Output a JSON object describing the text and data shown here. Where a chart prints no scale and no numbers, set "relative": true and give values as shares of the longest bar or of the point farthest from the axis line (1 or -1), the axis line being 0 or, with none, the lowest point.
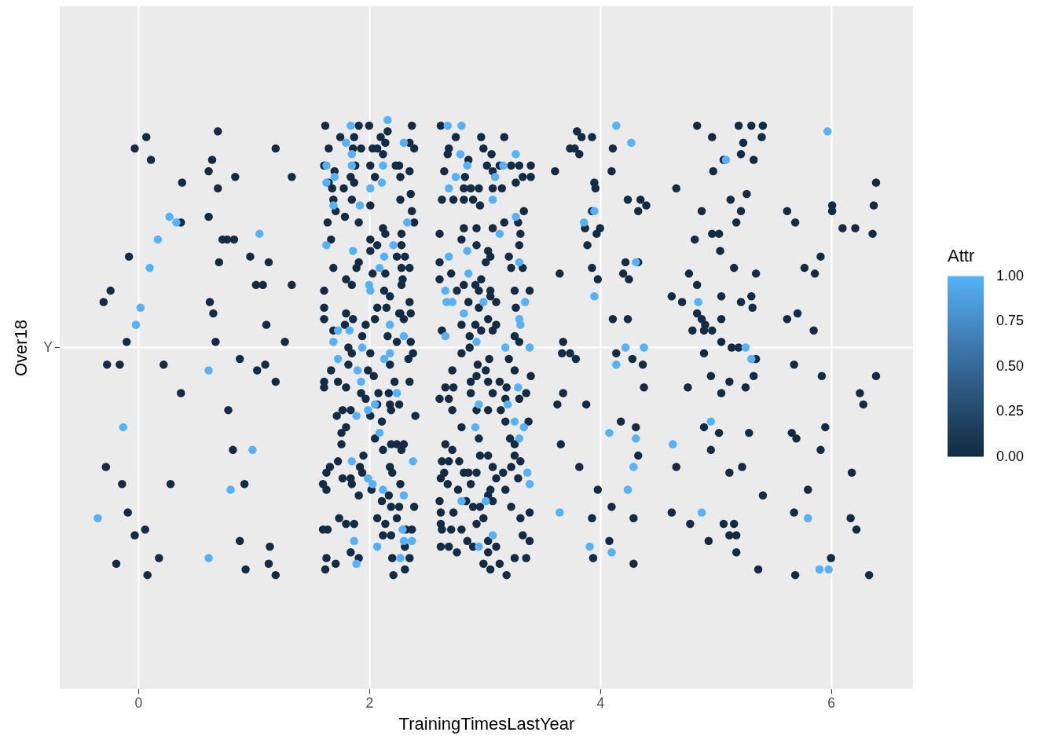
{
  "chart_data": {
    "type": "scatter",
    "xlabel": "TrainingTimesLastYear",
    "ylabel": "Over18",
    "clabel": "Attr",
    "xlim": [
      -0.68,
      6.71
    ],
    "xticks": [
      0,
      2,
      4,
      6
    ],
    "relative": true,
    "ref_lines": [
      {
        "axis": "y",
        "value": 0.6,
        "color": "#ffffff"
      }
    ],
    "annotations": [
      "Y"
    ],
    "clim": [
      0,
      1
    ],
    "cticks": [
      {
        "value": 0,
        "label": "0.00"
      },
      {
        "value": 0.25,
        "label": "0.25"
      },
      {
        "value": 0.5,
        "label": "0.50"
      },
      {
        "value": 0.75,
        "label": "0.75"
      },
      {
        "value": 1,
        "label": "1.00"
      }
    ],
    "grid": "x",
    "marker": "circle",
    "series": [
      {
        "x": [
          0.07,
          0.69,
          -0.03,
          0.11,
          1.19,
          0.64,
          0.61,
          0.84,
          1.33,
          0.38,
          0.69,
          0.37,
          0.61,
          0.73,
          0.77,
          0.83,
          -0.08,
          0.7,
          0.97,
          1.13,
          1.02,
          1.08,
          1.33,
          -0.24,
          -0.3,
          0.62,
          0.65,
          1.11,
          -0.1,
          0.67,
          1.27,
          -0.27,
          -0.16,
          0.22,
          0.88,
          1.03,
          1.1,
          1.19,
          0.37,
          0.78,
          0.82,
          -0.28,
          -0.14,
          0.28,
          0.92,
          -0.09,
          0.06,
          -0.03,
          0.88,
          1.14,
          0.18,
          -0.19,
          0.08,
          0.93,
          1.13,
          1.19,
          4.84,
          3.8,
          3.84,
          3.93,
          5.2,
          5.31,
          5.41,
          5.4,
          4.97,
          5.24,
          3.74,
          3.78,
          3.82,
          4.11,
          5.07,
          5.22,
          5.33,
          3.61,
          4.1,
          4.98,
          3.95,
          3.96,
          6.39,
          4.66,
          5.27,
          4.24,
          4.35,
          4.4,
          4.33,
          5.13,
          4.88,
          5.22,
          6.01,
          6.01,
          6.37,
          5.62,
          5.69,
          3.93,
          3.87,
          4.0,
          3.97,
          5.18,
          6.1,
          6.21,
          6.36,
          5.03,
          4.97,
          4.82,
          3.89,
          5.04,
          4.33,
          4.22,
          5.91,
          3.65,
          3.93,
          3.98,
          4.2,
          4.25,
          4.77,
          5.16,
          5.35,
          5.77,
          5.86,
          4.84,
          4.62,
          4.71,
          5.05,
          5.31,
          5.22,
          5.32,
          4.11,
          4.24,
          4.84,
          4.88,
          4.91,
          4.9,
          4.97,
          4.8,
          5.05,
          5.62,
          5.71,
          5.85,
          3.68,
          3.67,
          3.74,
          3.79,
          4.14,
          4.28,
          5.05,
          5.14,
          5.2,
          5.35,
          4.9,
          4.37,
          5.68,
          5.92,
          6.39,
          4.96,
          5.33,
          4.76,
          5.12,
          5.26,
          5.05,
          4.38,
          3.68,
          3.63,
          3.88,
          6.25,
          6.28,
          4.18,
          4.31,
          4.9,
          5.03,
          5.29,
          5.66,
          5.7,
          5.95,
          3.66,
          4.96,
          4.33,
          5.91,
          3.82,
          4.66,
          5.23,
          5.12,
          6.18,
          3.98,
          5.8,
          5.41,
          4.1,
          3.93,
          4.29,
          4.62,
          4.78,
          5.07,
          5.16,
          5.12,
          5.18,
          5.68,
          6.17,
          6.22,
          3.94,
          4.08,
          4.29,
          4.94,
          5.18,
          5.37,
          5.69,
          6.0,
          6.33,
          1.62,
          1.91,
          2.0,
          2.37,
          1.75,
          1.87,
          2.16,
          2.1,
          2.14,
          2.35,
          2.39,
          1.65,
          1.86,
          1.93,
          2.03,
          2.07,
          2.12,
          1.61,
          1.7,
          1.88,
          2.01,
          2.26,
          2.23,
          2.35,
          2.27,
          2.05,
          1.84,
          1.65,
          1.68,
          1.78,
          1.87,
          1.69,
          1.85,
          2.01,
          2.27,
          2.36,
          1.71,
          1.79,
          2.37,
          1.64,
          1.91,
          2.12,
          2.28,
          2.39,
          1.67,
          2.01,
          2.14,
          2.28,
          2.07,
          2.01,
          2.31,
          1.69,
          1.91,
          1.89,
          2.24,
          2.28,
          2.35,
          1.8,
          1.85,
          2.03,
          2.14,
          2.29,
          2.28,
          1.61,
          2.13,
          2.18,
          1.61,
          2.07,
          2.15,
          2.35,
          2.27,
          2.36,
          1.61,
          1.8,
          1.86,
          2.05,
          1.97,
          2.26,
          2.3,
          1.69,
          1.79,
          1.94,
          2.16,
          2.36,
          2.24,
          1.82,
          2.01,
          1.85,
          1.82,
          1.67,
          1.61,
          1.61,
          1.73,
          1.8,
          1.99,
          2.04,
          2.18,
          2.34,
          2.38,
          1.93,
          1.97,
          2.08,
          2.07,
          2.22,
          2.35,
          2.17,
          2.18,
          2.26,
          2.19,
          2.4,
          1.72,
          1.77,
          1.84,
          2.01,
          2.11,
          1.8,
          1.76,
          1.76,
          2.05,
          2.12,
          2.19,
          2.24,
          2.3,
          2.28,
          1.73,
          1.66,
          1.63,
          1.77,
          1.84,
          1.92,
          1.95,
          1.94,
          1.85,
          2.02,
          1.91,
          1.6,
          1.63,
          2.18,
          2.2,
          2.27,
          2.17,
          2.11,
          2.19,
          2.26,
          2.24,
          2.39,
          1.74,
          1.8,
          1.87,
          1.6,
          1.64,
          2.07,
          2.14,
          2.12,
          2.19,
          2.32,
          2.37,
          2.31,
          1.63,
          1.62,
          1.71,
          1.84,
          1.91,
          2.2,
          2.35,
          2.21,
          2.31,
          2.62,
          2.75,
          2.97,
          3.17,
          2.69,
          2.68,
          2.86,
          2.99,
          3.06,
          2.65,
          3.02,
          3.13,
          3.23,
          3.3,
          3.4,
          3.4,
          3.33,
          3.07,
          2.83,
          2.82,
          2.88,
          2.95,
          3.07,
          3.15,
          3.27,
          2.63,
          2.73,
          2.82,
          2.9,
          2.96,
          3.34,
          2.61,
          2.82,
          2.93,
          3.07,
          3.17,
          3.29,
          3.31,
          3.3,
          2.8,
          2.93,
          3.03,
          3.05,
          3.21,
          2.61,
          3.01,
          3.23,
          3.33,
          2.61,
          2.71,
          2.82,
          2.92,
          2.97,
          2.95,
          3.05,
          3.26,
          3.39,
          2.76,
          2.86,
          2.95,
          3.05,
          3.1,
          3.27,
          2.8,
          2.92,
          3.03,
          3.1,
          2.63,
          2.87,
          2.97,
          3.07,
          3.26,
          3.3,
          2.8,
          2.87,
          2.72,
          2.94,
          3.04,
          3.01,
          2.93,
          2.88,
          2.88,
          3.03,
          3.21,
          3.26,
          3.4,
          3.13,
          3.19,
          3.36,
          3.07,
          3.18,
          3.3,
          2.66,
          2.73,
          2.69,
          2.61,
          2.72,
          2.93,
          3.03,
          3.14,
          3.18,
          3.38,
          2.8,
          2.95,
          3.22,
          3.26,
          2.66,
          2.72,
          2.63,
          2.69,
          2.78,
          2.96,
          3.03,
          3.07,
          3.26,
          3.31,
          3.23,
          3.29,
          3.16,
          2.65,
          2.62,
          2.68,
          2.82,
          2.86,
          2.93,
          2.88,
          2.77,
          3.1,
          3.05,
          3.18,
          3.03,
          2.84,
          2.9,
          2.96,
          3.07,
          3.23,
          3.39,
          2.61,
          2.62,
          2.73,
          2.62,
          2.63,
          2.71,
          2.8,
          2.85,
          2.93,
          2.99,
          3.03,
          3.1,
          3.31,
          3.33,
          3.39,
          2.62,
          2.69,
          2.76,
          2.9,
          3.03,
          2.99,
          3.05,
          3.13,
          3.26,
          3.36,
          3.19
        ],
        "values": [
          0.97,
          0.98,
          0.95,
          0.93,
          0.95,
          0.93,
          0.91,
          0.9,
          0.9,
          0.89,
          0.88,
          0.82,
          0.83,
          0.79,
          0.79,
          0.79,
          0.76,
          0.75,
          0.76,
          0.75,
          0.71,
          0.71,
          0.71,
          0.7,
          0.68,
          0.68,
          0.66,
          0.64,
          0.61,
          0.61,
          0.61,
          0.57,
          0.57,
          0.57,
          0.58,
          0.56,
          0.57,
          0.54,
          0.52,
          0.49,
          0.42,
          0.39,
          0.36,
          0.36,
          0.36,
          0.31,
          0.28,
          0.27,
          0.26,
          0.25,
          0.23,
          0.22,
          0.2,
          0.21,
          0.22,
          0.2,
          0.99,
          0.98,
          0.97,
          0.97,
          0.99,
          0.99,
          0.99,
          0.97,
          0.97,
          0.96,
          0.95,
          0.95,
          0.94,
          0.95,
          0.93,
          0.94,
          0.93,
          0.91,
          0.91,
          0.91,
          0.89,
          0.88,
          0.89,
          0.88,
          0.87,
          0.86,
          0.86,
          0.85,
          0.84,
          0.86,
          0.84,
          0.84,
          0.85,
          0.84,
          0.85,
          0.84,
          0.82,
          0.84,
          0.81,
          0.81,
          0.8,
          0.82,
          0.81,
          0.81,
          0.8,
          0.8,
          0.8,
          0.79,
          0.78,
          0.77,
          0.75,
          0.75,
          0.76,
          0.73,
          0.74,
          0.72,
          0.73,
          0.72,
          0.73,
          0.74,
          0.73,
          0.74,
          0.73,
          0.71,
          0.69,
          0.68,
          0.69,
          0.69,
          0.68,
          0.67,
          0.65,
          0.65,
          0.66,
          0.65,
          0.64,
          0.63,
          0.63,
          0.63,
          0.65,
          0.65,
          0.66,
          0.63,
          0.61,
          0.59,
          0.59,
          0.58,
          0.59,
          0.58,
          0.61,
          0.6,
          0.6,
          0.58,
          0.59,
          0.57,
          0.57,
          0.55,
          0.55,
          0.55,
          0.55,
          0.53,
          0.54,
          0.53,
          0.52,
          0.53,
          0.52,
          0.5,
          0.5,
          0.52,
          0.5,
          0.47,
          0.46,
          0.46,
          0.45,
          0.45,
          0.45,
          0.44,
          0.46,
          0.43,
          0.42,
          0.41,
          0.42,
          0.39,
          0.39,
          0.39,
          0.38,
          0.38,
          0.35,
          0.35,
          0.34,
          0.32,
          0.3,
          0.3,
          0.31,
          0.29,
          0.29,
          0.29,
          0.27,
          0.27,
          0.31,
          0.3,
          0.28,
          0.23,
          0.26,
          0.22,
          0.26,
          0.24,
          0.21,
          0.2,
          0.23,
          0.2,
          0.99,
          0.99,
          0.99,
          0.99,
          0.97,
          0.97,
          0.98,
          0.97,
          0.96,
          0.96,
          0.95,
          0.95,
          0.95,
          0.95,
          0.95,
          0.95,
          0.94,
          0.92,
          0.91,
          0.92,
          0.92,
          0.92,
          0.92,
          0.91,
          0.9,
          0.9,
          0.9,
          0.89,
          0.88,
          0.88,
          0.89,
          0.86,
          0.86,
          0.85,
          0.86,
          0.87,
          0.84,
          0.83,
          0.84,
          0.82,
          0.82,
          0.81,
          0.8,
          0.82,
          0.79,
          0.79,
          0.8,
          0.78,
          0.78,
          0.77,
          0.76,
          0.74,
          0.75,
          0.74,
          0.76,
          0.74,
          0.74,
          0.72,
          0.71,
          0.73,
          0.73,
          0.72,
          0.71,
          0.7,
          0.7,
          0.69,
          0.67,
          0.67,
          0.67,
          0.68,
          0.66,
          0.66,
          0.65,
          0.66,
          0.65,
          0.65,
          0.64,
          0.66,
          0.65,
          0.63,
          0.64,
          0.62,
          0.62,
          0.61,
          0.61,
          0.6,
          0.59,
          0.59,
          0.57,
          0.56,
          0.54,
          0.53,
          0.54,
          0.53,
          0.56,
          0.55,
          0.57,
          0.58,
          0.59,
          0.52,
          0.51,
          0.52,
          0.5,
          0.54,
          0.54,
          0.52,
          0.5,
          0.5,
          0.49,
          0.48,
          0.48,
          0.49,
          0.49,
          0.48,
          0.47,
          0.46,
          0.45,
          0.43,
          0.44,
          0.42,
          0.43,
          0.43,
          0.43,
          0.42,
          0.4,
          0.39,
          0.38,
          0.37,
          0.37,
          0.39,
          0.41,
          0.38,
          0.36,
          0.35,
          0.34,
          0.36,
          0.35,
          0.39,
          0.38,
          0.36,
          0.34,
          0.33,
          0.32,
          0.32,
          0.3,
          0.32,
          0.3,
          0.29,
          0.29,
          0.28,
          0.28,
          0.3,
          0.29,
          0.27,
          0.27,
          0.28,
          0.28,
          0.25,
          0.23,
          0.21,
          0.22,
          0.24,
          0.23,
          0.23,
          0.23,
          0.2,
          0.21,
          0.99,
          0.97,
          0.97,
          0.97,
          0.95,
          0.94,
          0.93,
          0.95,
          0.94,
          0.91,
          0.92,
          0.92,
          0.92,
          0.92,
          0.92,
          0.9,
          0.9,
          0.91,
          0.9,
          0.88,
          0.88,
          0.88,
          0.88,
          0.88,
          0.89,
          0.86,
          0.86,
          0.86,
          0.86,
          0.85,
          0.84,
          0.8,
          0.81,
          0.81,
          0.81,
          0.82,
          0.82,
          0.8,
          0.78,
          0.79,
          0.78,
          0.77,
          0.76,
          0.76,
          0.75,
          0.75,
          0.74,
          0.74,
          0.72,
          0.73,
          0.71,
          0.71,
          0.72,
          0.7,
          0.7,
          0.7,
          0.7,
          0.7,
          0.68,
          0.67,
          0.69,
          0.68,
          0.67,
          0.64,
          0.64,
          0.65,
          0.64,
          0.63,
          0.62,
          0.63,
          0.63,
          0.62,
          0.61,
          0.59,
          0.6,
          0.56,
          0.57,
          0.58,
          0.56,
          0.55,
          0.54,
          0.52,
          0.54,
          0.58,
          0.56,
          0.55,
          0.54,
          0.53,
          0.52,
          0.52,
          0.51,
          0.51,
          0.53,
          0.53,
          0.51,
          0.51,
          0.49,
          0.49,
          0.49,
          0.49,
          0.47,
          0.47,
          0.46,
          0.44,
          0.44,
          0.43,
          0.43,
          0.42,
          0.4,
          0.4,
          0.4,
          0.41,
          0.41,
          0.39,
          0.41,
          0.4,
          0.39,
          0.37,
          0.38,
          0.38,
          0.37,
          0.36,
          0.38,
          0.38,
          0.38,
          0.36,
          0.35,
          0.37,
          0.35,
          0.35,
          0.34,
          0.33,
          0.32,
          0.32,
          0.33,
          0.32,
          0.31,
          0.33,
          0.31,
          0.31,
          0.29,
          0.28,
          0.28,
          0.28,
          0.26,
          0.29,
          0.3,
          0.26,
          0.25,
          0.3,
          0.27,
          0.26,
          0.25,
          0.25,
          0.24,
          0.25,
          0.24,
          0.22,
          0.21,
          0.22,
          0.23,
          0.23,
          0.2
        ],
        "cvalues": [
          0,
          0,
          0,
          0,
          0,
          0,
          0,
          0,
          0,
          0,
          0,
          0,
          0,
          0,
          0,
          0,
          0,
          0,
          0,
          0,
          0,
          0,
          0,
          0,
          0,
          0,
          0,
          0,
          0,
          0,
          0,
          0,
          0,
          0,
          0,
          0,
          0,
          0,
          0,
          0,
          0,
          0,
          0,
          0,
          0,
          0,
          0,
          0,
          0,
          0,
          0,
          0,
          0,
          0,
          0,
          0,
          0,
          0,
          0,
          0,
          0,
          0,
          0,
          0,
          0,
          0,
          0,
          0,
          0,
          0,
          0,
          0,
          0,
          0,
          0,
          0,
          0,
          0,
          0,
          0,
          0,
          0,
          0,
          0,
          0,
          0,
          0,
          0,
          0,
          0,
          0,
          0,
          0,
          0,
          0,
          0,
          0,
          0,
          0,
          0,
          0,
          0,
          0,
          0,
          0,
          0,
          0,
          0,
          0,
          0,
          0,
          0,
          0,
          0,
          0,
          0,
          0,
          0,
          0,
          0,
          0,
          0,
          0,
          0,
          0,
          0,
          0,
          0,
          0,
          0,
          0,
          0,
          0,
          0,
          0,
          0,
          0,
          0,
          0,
          0,
          0,
          0,
          0,
          0,
          0,
          0,
          0,
          0,
          0,
          0,
          0,
          0,
          0,
          0,
          0,
          0,
          0,
          0,
          0,
          0,
          0,
          0,
          0,
          0,
          0,
          0,
          0,
          0,
          0,
          0,
          0,
          0,
          0,
          0,
          0,
          0,
          0,
          0,
          0,
          0,
          0,
          0,
          0,
          0,
          0,
          0,
          0,
          0,
          0,
          0,
          0,
          0,
          0,
          0,
          0,
          0,
          0,
          0,
          0,
          0,
          0,
          0,
          0,
          0,
          0,
          0,
          0,
          0,
          0,
          0,
          0,
          0,
          0,
          0,
          0,
          0,
          0,
          0,
          0,
          0,
          0,
          0,
          0,
          0,
          0,
          0,
          0,
          0,
          0,
          0,
          0,
          0,
          0,
          0,
          0,
          0,
          0,
          0,
          0,
          0,
          0,
          0,
          0,
          0,
          0,
          0,
          0,
          0,
          0,
          0,
          0,
          0,
          0,
          0,
          0,
          0,
          0,
          0,
          0,
          0,
          0,
          0,
          0,
          0,
          0,
          0,
          0,
          0,
          0,
          0,
          0,
          0,
          0,
          0,
          0,
          0,
          0,
          0,
          0,
          0,
          0,
          0,
          0,
          0,
          0,
          0,
          0,
          0,
          0,
          0,
          0,
          0,
          0,
          0,
          0,
          0,
          0,
          0,
          0,
          0,
          0,
          0,
          0,
          0,
          0,
          0,
          0,
          0,
          0,
          0,
          0,
          0,
          0,
          0,
          0,
          0,
          0,
          0,
          0,
          0,
          0,
          0,
          0,
          0,
          0,
          0,
          0,
          0,
          0,
          0,
          0,
          0,
          0,
          0,
          0,
          0,
          0,
          0,
          0,
          0,
          0,
          0,
          0,
          0,
          0,
          0,
          0,
          0,
          0,
          0,
          0,
          0,
          0,
          0,
          0,
          0,
          0,
          0,
          0,
          0,
          0,
          0,
          0,
          0,
          0,
          0,
          0,
          0,
          0,
          0,
          0,
          0,
          0,
          0,
          0,
          0,
          0,
          0,
          0,
          0,
          0,
          0,
          0,
          0,
          0,
          0,
          0,
          0,
          0,
          0,
          0,
          0,
          0,
          0,
          0,
          0,
          0,
          0,
          0,
          0,
          0,
          0,
          0,
          0,
          0,
          0,
          0,
          0,
          0,
          0,
          0,
          0,
          0,
          0,
          0,
          0,
          0,
          0,
          0,
          0,
          0,
          0,
          0,
          0,
          0,
          0,
          0,
          0,
          0,
          0,
          0,
          0,
          0,
          0,
          0,
          0,
          0,
          0,
          0,
          0,
          0,
          0,
          0,
          0,
          0,
          0,
          0,
          0,
          0,
          0,
          0,
          0,
          0,
          0,
          0,
          0,
          0,
          0,
          0,
          0,
          0,
          0,
          0,
          0,
          0,
          0,
          0,
          0,
          0,
          0,
          0,
          0,
          0,
          0,
          0,
          0,
          0,
          0,
          0,
          0,
          0,
          0,
          0,
          0,
          0,
          0,
          0,
          0,
          0,
          0,
          0,
          0,
          0,
          0,
          0,
          0,
          0,
          0,
          0,
          0,
          0,
          0,
          0,
          0,
          0,
          0,
          0,
          0,
          0,
          0,
          0,
          0,
          0,
          0,
          0,
          0,
          0,
          0,
          0,
          0,
          0,
          0,
          0,
          0,
          0,
          0,
          0,
          0,
          0,
          0,
          0,
          0,
          0,
          0,
          0,
          0
        ]
      },
      {
        "x": [
          0.27,
          0.33,
          1.05,
          0.17,
          0.1,
          0.02,
          -0.02,
          0.61,
          -0.13,
          0.99,
          0.8,
          -0.35,
          0.61,
          4.14,
          4.27,
          5.97,
          5.09,
          3.95,
          3.86,
          4.31,
          3.95,
          4.85,
          4.22,
          4.38,
          5.26,
          5.31,
          4.14,
          4.08,
          4.96,
          4.31,
          4.63,
          4.29,
          4.24,
          3.65,
          4.88,
          5.8,
          3.91,
          4.1,
          5.9,
          5.98,
          1.84,
          2.16,
          1.8,
          2.3,
          1.63,
          1.85,
          1.85,
          2.12,
          1.63,
          1.7,
          2.01,
          2.11,
          1.69,
          1.92,
          2.33,
          1.63,
          1.86,
          2.21,
          2.13,
          2.09,
          2.0,
          2.01,
          2.18,
          1.73,
          1.83,
          1.69,
          1.94,
          2.3,
          1.73,
          1.9,
          1.93,
          2.13,
          2.18,
          2.24,
          2.05,
          1.99,
          1.89,
          2.09,
          1.85,
          1.99,
          2.03,
          2.12,
          2.3,
          2.38,
          1.87,
          2.07,
          2.29,
          2.3,
          2.37,
          2.27,
          1.89,
          2.68,
          2.8,
          2.79,
          2.85,
          2.75,
          2.69,
          3.09,
          3.16,
          3.27,
          3.07,
          3.27,
          3.13,
          2.85,
          2.69,
          2.86,
          3.3,
          2.66,
          2.67,
          2.72,
          2.99,
          3.35,
          2.82,
          3.3,
          3.31,
          2.66,
          2.93,
          3.18,
          3.39,
          2.95,
          2.92,
          3.2,
          3.29,
          3.26,
          3.34,
          3.3,
          3.37,
          3.39,
          2.8,
          3.01,
          3.07,
          2.95
        ],
        "values": [
          0.83,
          0.82,
          0.8,
          0.79,
          0.74,
          0.67,
          0.64,
          0.56,
          0.46,
          0.42,
          0.35,
          0.3,
          0.23,
          0.99,
          0.96,
          0.98,
          0.93,
          0.84,
          0.82,
          0.75,
          0.69,
          0.68,
          0.6,
          0.6,
          0.6,
          0.58,
          0.57,
          0.45,
          0.47,
          0.44,
          0.43,
          0.39,
          0.35,
          0.31,
          0.31,
          0.3,
          0.25,
          0.24,
          0.21,
          0.21,
          0.99,
          1.0,
          0.96,
          0.96,
          0.92,
          0.94,
          0.92,
          0.92,
          0.89,
          0.9,
          0.88,
          0.89,
          0.85,
          0.85,
          0.82,
          0.78,
          0.77,
          0.78,
          0.76,
          0.74,
          0.71,
          0.7,
          0.64,
          0.63,
          0.63,
          0.61,
          0.6,
          0.62,
          0.58,
          0.56,
          0.54,
          0.58,
          0.59,
          0.52,
          0.5,
          0.49,
          0.48,
          0.45,
          0.4,
          0.37,
          0.36,
          0.35,
          0.34,
          0.4,
          0.26,
          0.25,
          0.28,
          0.26,
          0.26,
          0.23,
          0.22,
          0.99,
          0.99,
          0.94,
          0.92,
          0.9,
          0.88,
          0.9,
          0.92,
          0.94,
          0.86,
          0.83,
          0.8,
          0.77,
          0.76,
          0.73,
          0.75,
          0.7,
          0.68,
          0.68,
          0.68,
          0.68,
          0.66,
          0.65,
          0.64,
          0.62,
          0.61,
          0.6,
          0.6,
          0.5,
          0.46,
          0.5,
          0.53,
          0.47,
          0.46,
          0.44,
          0.38,
          0.36,
          0.33,
          0.33,
          0.27,
          0.25
        ],
        "cvalues": [
          1,
          1,
          1,
          1,
          1,
          1,
          1,
          1,
          1,
          1,
          1,
          1,
          1,
          1,
          1,
          1,
          1,
          1,
          1,
          1,
          1,
          1,
          1,
          1,
          1,
          1,
          1,
          1,
          1,
          1,
          1,
          1,
          1,
          1,
          1,
          1,
          1,
          1,
          1,
          1,
          1,
          1,
          1,
          1,
          1,
          1,
          1,
          1,
          1,
          1,
          1,
          1,
          1,
          1,
          1,
          1,
          1,
          1,
          1,
          1,
          1,
          1,
          1,
          1,
          1,
          1,
          1,
          1,
          1,
          1,
          1,
          1,
          1,
          1,
          1,
          1,
          1,
          1,
          1,
          1,
          1,
          1,
          1,
          1,
          1,
          1,
          1,
          1,
          1,
          1,
          1,
          1,
          1,
          1,
          1,
          1,
          1,
          1,
          1,
          1,
          1,
          1,
          1,
          1,
          1,
          1,
          1,
          1,
          1,
          1,
          1,
          1,
          1,
          1,
          1,
          1,
          1,
          1,
          1,
          1,
          1,
          1,
          1,
          1,
          1,
          1,
          1,
          1,
          1,
          1,
          1,
          1
        ]
      }
    ]
  }
}
